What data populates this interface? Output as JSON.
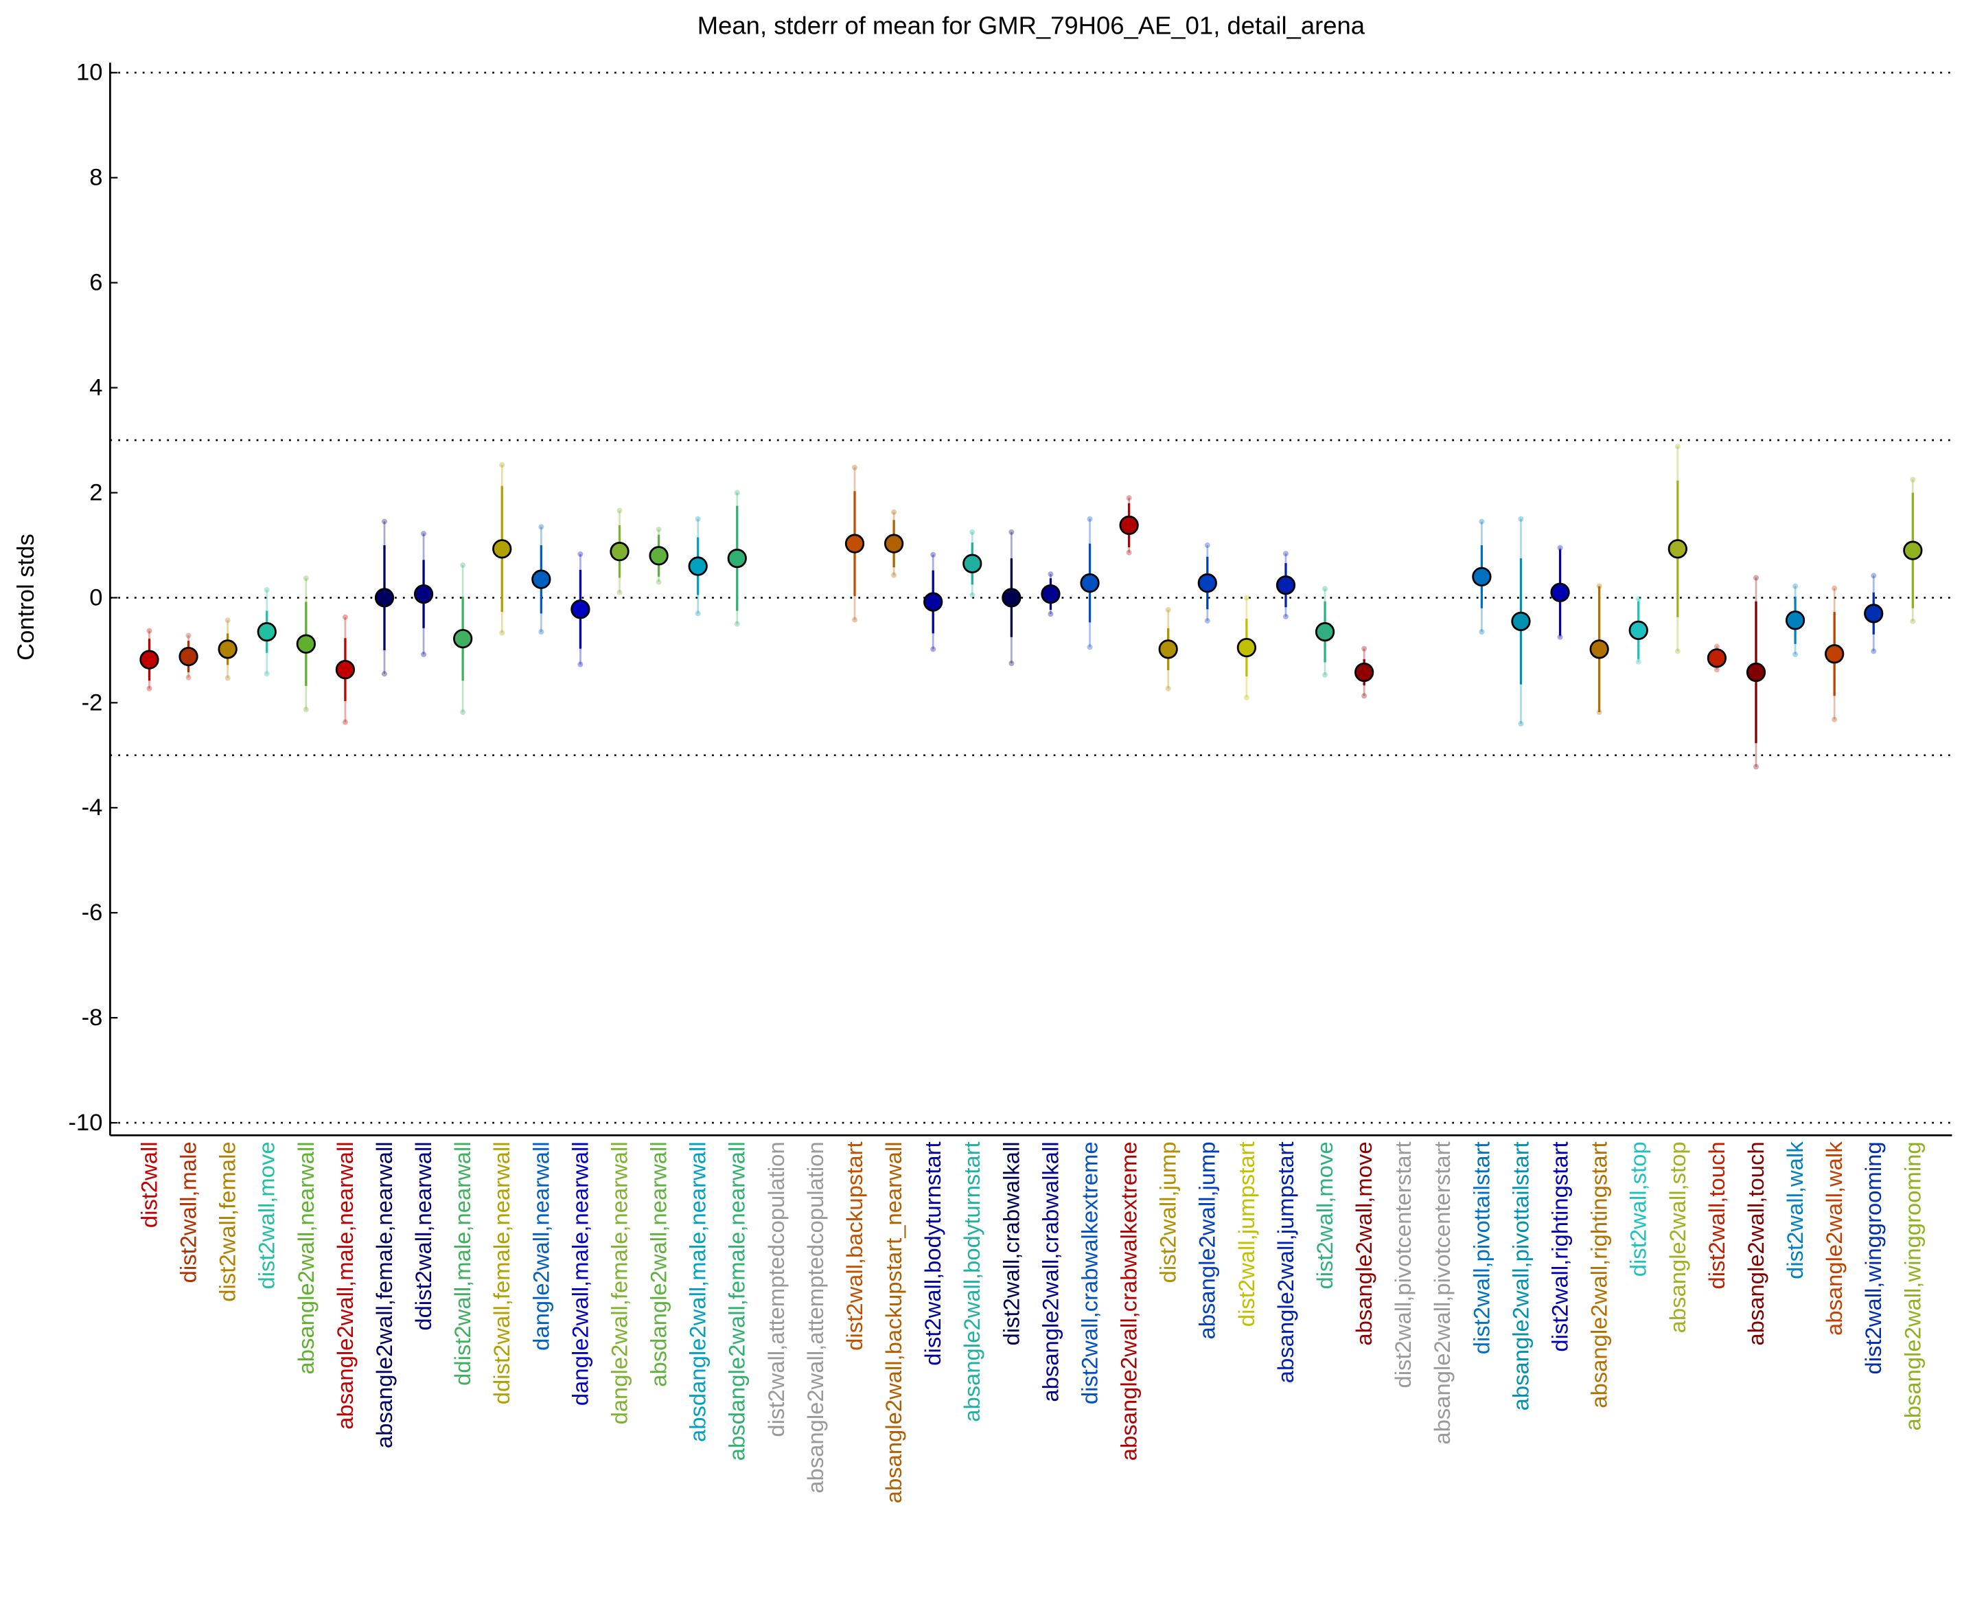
{
  "chart_data": {
    "type": "errorbar",
    "title": "Mean, stderr of mean for GMR_79H06_AE_01, detail_arena",
    "ylabel": "Control stds",
    "categories": [
      "dist2wall",
      "dist2wall,male",
      "dist2wall,female",
      "dist2wall,move",
      "absangle2wall,nearwall",
      "absangle2wall,male,nearwall",
      "absangle2wall,female,nearwall",
      "ddist2wall,nearwall",
      "ddist2wall,male,nearwall",
      "ddist2wall,female,nearwall",
      "dangle2wall,nearwall",
      "dangle2wall,male,nearwall",
      "dangle2wall,female,nearwall",
      "absdangle2wall,nearwall",
      "absdangle2wall,male,nearwall",
      "absdangle2wall,female,nearwall",
      "dist2wall,attemptedcopulation",
      "absangle2wall,attemptedcopulation",
      "dist2wall,backupstart",
      "absangle2wall,backupstart_nearwall",
      "dist2wall,bodyturnstart",
      "absangle2wall,bodyturnstart",
      "dist2wall,crabwalkall",
      "absangle2wall,crabwalkall",
      "dist2wall,crabwalkextreme",
      "absangle2wall,crabwalkextreme",
      "dist2wall,jump",
      "absangle2wall,jump",
      "dist2wall,jumpstart",
      "absangle2wall,jumpstart",
      "dist2wall,move",
      "absangle2wall,move",
      "dist2wall,pivotcenterstart",
      "absangle2wall,pivotcenterstart",
      "dist2wall,pivottailstart",
      "absangle2wall,pivottailstart",
      "dist2wall,rightingstart",
      "absangle2wall,rightingstart",
      "dist2wall,stop",
      "absangle2wall,stop",
      "dist2wall,touch",
      "absangle2wall,touch",
      "dist2wall,walk",
      "absangle2wall,walk",
      "dist2wall,winggrooming",
      "absangle2wall,winggrooming"
    ],
    "values": [
      -1.18,
      -1.12,
      -0.98,
      -0.65,
      -0.88,
      -1.37,
      0.0,
      0.07,
      -0.78,
      0.93,
      0.35,
      -0.22,
      0.88,
      0.8,
      0.6,
      0.75,
      null,
      null,
      1.03,
      1.03,
      -0.08,
      0.65,
      0.0,
      0.07,
      0.28,
      1.38,
      -0.98,
      0.28,
      -0.95,
      0.24,
      -0.65,
      -1.42,
      null,
      null,
      0.4,
      -0.45,
      0.1,
      -0.98,
      -0.62,
      0.93,
      -1.15,
      -1.42,
      -0.43,
      -1.07,
      -0.3,
      0.9
    ],
    "errors": [
      0.4,
      0.3,
      0.3,
      0.4,
      0.8,
      0.6,
      1.0,
      0.65,
      0.8,
      1.2,
      0.65,
      0.75,
      0.5,
      0.4,
      0.55,
      1.0,
      null,
      null,
      1.0,
      0.45,
      0.6,
      0.4,
      0.75,
      0.3,
      0.75,
      0.42,
      0.4,
      0.5,
      0.55,
      0.42,
      0.58,
      0.25,
      null,
      null,
      0.6,
      1.2,
      0.82,
      1.2,
      0.55,
      1.3,
      0.15,
      1.35,
      0.45,
      0.8,
      0.4,
      1.1
    ],
    "spreads": [
      0.55,
      0.4,
      0.55,
      0.8,
      1.25,
      1.0,
      1.45,
      1.15,
      1.4,
      1.6,
      1.0,
      1.05,
      0.78,
      0.5,
      0.9,
      1.25,
      null,
      null,
      1.45,
      0.6,
      0.9,
      0.6,
      1.25,
      0.38,
      1.22,
      0.52,
      0.75,
      0.72,
      0.95,
      0.6,
      0.82,
      0.45,
      null,
      null,
      1.05,
      1.95,
      0.85,
      1.2,
      0.6,
      1.95,
      0.22,
      1.8,
      0.65,
      1.25,
      0.72,
      1.35
    ],
    "colors": [
      "#c00000",
      "#b03000",
      "#b08000",
      "#20c0a0",
      "#60b030",
      "#c00000",
      "#000060",
      "#000080",
      "#40b060",
      "#b0a000",
      "#0060c0",
      "#0000c0",
      "#80b030",
      "#60b040",
      "#00a0c0",
      "#30b070",
      "#999999",
      "#999999",
      "#c05000",
      "#b06000",
      "#0000a0",
      "#20b0a0",
      "#000050",
      "#000090",
      "#0050c0",
      "#b00000",
      "#b09000",
      "#0040c0",
      "#c0c000",
      "#0020b0",
      "#30b080",
      "#900000",
      "#999999",
      "#999999",
      "#0070c0",
      "#0090b0",
      "#0000b0",
      "#b07000",
      "#20c0c0",
      "#a0b020",
      "#c02000",
      "#800000",
      "#0080c0",
      "#c04000",
      "#0030b0",
      "#90b020"
    ],
    "xlim": [
      0,
      47
    ],
    "ylim": [
      -10,
      10
    ],
    "yticks": [
      -10,
      -8,
      -6,
      -4,
      -2,
      0,
      2,
      4,
      6,
      8,
      10
    ],
    "reference_lines": [
      10,
      3,
      0,
      -3,
      -10
    ]
  }
}
